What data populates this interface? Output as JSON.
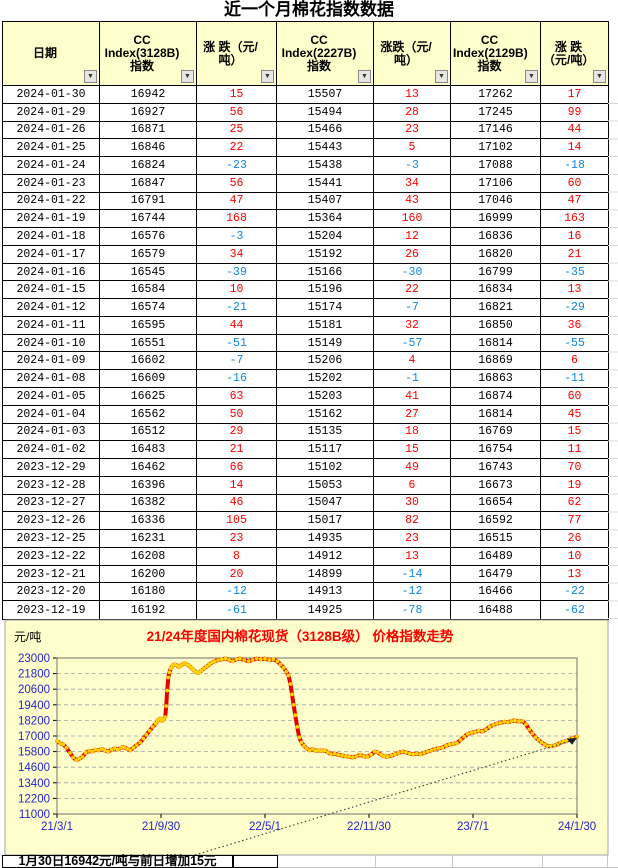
{
  "page_title": "近一个月棉花指数数据",
  "colors": {
    "positive": "#fe0000",
    "negative": "#0d86e8",
    "header_bg": "#ffffcc",
    "chart_bg": "#ffffcc",
    "axis_label": "#2525cc",
    "grid_line": "#9aa0a8",
    "series_line": "#e60000",
    "series_marker": "#ffd400",
    "chart_title": "#fe0000"
  },
  "table": {
    "filter_icon": "▼",
    "headers": [
      "日期",
      "CC\nIndex(3128B)\n指数",
      "涨 跌（元/吨）",
      "CC\nIndex(2227B)\n指数",
      "涨跌（元/吨）",
      "CC\nIndex(2129B)\n指数",
      "涨 跌（元/吨）"
    ],
    "change_columns": [
      2,
      4,
      6
    ],
    "rows": [
      [
        "2024-01-30",
        16942,
        15,
        15507,
        13,
        17262,
        17
      ],
      [
        "2024-01-29",
        16927,
        56,
        15494,
        28,
        17245,
        99
      ],
      [
        "2024-01-26",
        16871,
        25,
        15466,
        23,
        17146,
        44
      ],
      [
        "2024-01-25",
        16846,
        22,
        15443,
        5,
        17102,
        14
      ],
      [
        "2024-01-24",
        16824,
        -23,
        15438,
        -3,
        17088,
        -18
      ],
      [
        "2024-01-23",
        16847,
        56,
        15441,
        34,
        17106,
        60
      ],
      [
        "2024-01-22",
        16791,
        47,
        15407,
        43,
        17046,
        47
      ],
      [
        "2024-01-19",
        16744,
        168,
        15364,
        160,
        16999,
        163
      ],
      [
        "2024-01-18",
        16576,
        -3,
        15204,
        12,
        16836,
        16
      ],
      [
        "2024-01-17",
        16579,
        34,
        15192,
        26,
        16820,
        21
      ],
      [
        "2024-01-16",
        16545,
        -39,
        15166,
        -30,
        16799,
        -35
      ],
      [
        "2024-01-15",
        16584,
        10,
        15196,
        22,
        16834,
        13
      ],
      [
        "2024-01-12",
        16574,
        -21,
        15174,
        -7,
        16821,
        -29
      ],
      [
        "2024-01-11",
        16595,
        44,
        15181,
        32,
        16850,
        36
      ],
      [
        "2024-01-10",
        16551,
        -51,
        15149,
        -57,
        16814,
        -55
      ],
      [
        "2024-01-09",
        16602,
        -7,
        15206,
        4,
        16869,
        6
      ],
      [
        "2024-01-08",
        16609,
        -16,
        15202,
        -1,
        16863,
        -11
      ],
      [
        "2024-01-05",
        16625,
        63,
        15203,
        41,
        16874,
        60
      ],
      [
        "2024-01-04",
        16562,
        50,
        15162,
        27,
        16814,
        45
      ],
      [
        "2024-01-03",
        16512,
        29,
        15135,
        18,
        16769,
        15
      ],
      [
        "2024-01-02",
        16483,
        21,
        15117,
        15,
        16754,
        11
      ],
      [
        "2023-12-29",
        16462,
        66,
        15102,
        49,
        16743,
        70
      ],
      [
        "2023-12-28",
        16396,
        14,
        15053,
        6,
        16673,
        19
      ],
      [
        "2023-12-27",
        16382,
        46,
        15047,
        30,
        16654,
        62
      ],
      [
        "2023-12-26",
        16336,
        105,
        15017,
        82,
        16592,
        77
      ],
      [
        "2023-12-25",
        16231,
        23,
        14935,
        23,
        16515,
        26
      ],
      [
        "2023-12-22",
        16208,
        8,
        14912,
        13,
        16489,
        10
      ],
      [
        "2023-12-21",
        16200,
        20,
        14899,
        -14,
        16479,
        13
      ],
      [
        "2023-12-20",
        16180,
        -12,
        14913,
        -12,
        16466,
        -22
      ],
      [
        "2023-12-19",
        16192,
        -61,
        14925,
        -78,
        16488,
        -62
      ]
    ]
  },
  "chart_data": {
    "type": "line",
    "title": "21/24年度国内棉花现货（3128B级） 价格指数走势",
    "ylabel": "元/吨",
    "ylim": [
      11000,
      23000
    ],
    "yticks": [
      23000,
      21800,
      20600,
      19400,
      18200,
      17000,
      15800,
      14600,
      13400,
      12200,
      11000
    ],
    "xticklabels": [
      "21/3/1",
      "21/9/30",
      "22/5/1",
      "22/11/30",
      "23/7/1",
      "24/1/30"
    ],
    "grid": "dashed",
    "annotation": "1月30日16942元/吨与前日增加15元",
    "series": [
      {
        "name": "CC Index(3128B)",
        "points": [
          [
            0.0,
            16600
          ],
          [
            0.006,
            16450
          ],
          [
            0.012,
            16350
          ],
          [
            0.018,
            16100
          ],
          [
            0.025,
            15700
          ],
          [
            0.031,
            15350
          ],
          [
            0.037,
            15150
          ],
          [
            0.043,
            15250
          ],
          [
            0.049,
            15400
          ],
          [
            0.055,
            15700
          ],
          [
            0.062,
            15850
          ],
          [
            0.068,
            15800
          ],
          [
            0.074,
            15950
          ],
          [
            0.08,
            15900
          ],
          [
            0.086,
            16000
          ],
          [
            0.092,
            15900
          ],
          [
            0.098,
            15800
          ],
          [
            0.105,
            15950
          ],
          [
            0.111,
            16050
          ],
          [
            0.117,
            15950
          ],
          [
            0.123,
            16100
          ],
          [
            0.129,
            16150
          ],
          [
            0.135,
            16000
          ],
          [
            0.141,
            15900
          ],
          [
            0.147,
            16100
          ],
          [
            0.153,
            16300
          ],
          [
            0.16,
            16500
          ],
          [
            0.166,
            16800
          ],
          [
            0.172,
            17100
          ],
          [
            0.178,
            17400
          ],
          [
            0.184,
            17700
          ],
          [
            0.19,
            17950
          ],
          [
            0.193,
            18150
          ],
          [
            0.196,
            18300
          ],
          [
            0.199,
            18350
          ],
          [
            0.202,
            18150
          ],
          [
            0.205,
            18300
          ],
          [
            0.208,
            18450
          ],
          [
            0.21,
            19300
          ],
          [
            0.212,
            20500
          ],
          [
            0.214,
            21500
          ],
          [
            0.216,
            21900
          ],
          [
            0.219,
            22200
          ],
          [
            0.222,
            22400
          ],
          [
            0.226,
            22500
          ],
          [
            0.23,
            22450
          ],
          [
            0.234,
            22300
          ],
          [
            0.238,
            22400
          ],
          [
            0.242,
            22550
          ],
          [
            0.246,
            22600
          ],
          [
            0.25,
            22500
          ],
          [
            0.254,
            22400
          ],
          [
            0.258,
            22250
          ],
          [
            0.262,
            22100
          ],
          [
            0.266,
            21950
          ],
          [
            0.27,
            21850
          ],
          [
            0.274,
            21900
          ],
          [
            0.278,
            22050
          ],
          [
            0.283,
            22200
          ],
          [
            0.288,
            22350
          ],
          [
            0.293,
            22500
          ],
          [
            0.298,
            22650
          ],
          [
            0.303,
            22750
          ],
          [
            0.31,
            22850
          ],
          [
            0.317,
            22900
          ],
          [
            0.324,
            22950
          ],
          [
            0.331,
            22850
          ],
          [
            0.338,
            22750
          ],
          [
            0.345,
            22900
          ],
          [
            0.352,
            22950
          ],
          [
            0.36,
            22850
          ],
          [
            0.368,
            22750
          ],
          [
            0.376,
            22850
          ],
          [
            0.384,
            22950
          ],
          [
            0.392,
            22900
          ],
          [
            0.4,
            22950
          ],
          [
            0.408,
            22850
          ],
          [
            0.416,
            22900
          ],
          [
            0.424,
            22750
          ],
          [
            0.43,
            22500
          ],
          [
            0.436,
            22250
          ],
          [
            0.441,
            21950
          ],
          [
            0.445,
            21650
          ],
          [
            0.449,
            21000
          ],
          [
            0.452,
            20200
          ],
          [
            0.455,
            19400
          ],
          [
            0.458,
            18600
          ],
          [
            0.462,
            17700
          ],
          [
            0.466,
            16900
          ],
          [
            0.47,
            16500
          ],
          [
            0.475,
            16250
          ],
          [
            0.48,
            16050
          ],
          [
            0.486,
            15900
          ],
          [
            0.492,
            16000
          ],
          [
            0.497,
            15850
          ],
          [
            0.503,
            15900
          ],
          [
            0.509,
            15850
          ],
          [
            0.515,
            15900
          ],
          [
            0.521,
            15750
          ],
          [
            0.527,
            15600
          ],
          [
            0.534,
            15650
          ],
          [
            0.541,
            15550
          ],
          [
            0.548,
            15500
          ],
          [
            0.555,
            15450
          ],
          [
            0.562,
            15400
          ],
          [
            0.569,
            15350
          ],
          [
            0.576,
            15450
          ],
          [
            0.583,
            15550
          ],
          [
            0.59,
            15450
          ],
          [
            0.597,
            15400
          ],
          [
            0.604,
            15550
          ],
          [
            0.611,
            15800
          ],
          [
            0.617,
            15750
          ],
          [
            0.623,
            15550
          ],
          [
            0.629,
            15450
          ],
          [
            0.636,
            15400
          ],
          [
            0.643,
            15500
          ],
          [
            0.65,
            15600
          ],
          [
            0.657,
            15700
          ],
          [
            0.664,
            15800
          ],
          [
            0.671,
            15750
          ],
          [
            0.678,
            15650
          ],
          [
            0.685,
            15600
          ],
          [
            0.692,
            15650
          ],
          [
            0.699,
            15600
          ],
          [
            0.706,
            15700
          ],
          [
            0.713,
            15800
          ],
          [
            0.72,
            15900
          ],
          [
            0.727,
            16000
          ],
          [
            0.734,
            16050
          ],
          [
            0.741,
            16100
          ],
          [
            0.748,
            16250
          ],
          [
            0.755,
            16350
          ],
          [
            0.762,
            16400
          ],
          [
            0.769,
            16450
          ],
          [
            0.776,
            16700
          ],
          [
            0.783,
            16950
          ],
          [
            0.79,
            17150
          ],
          [
            0.797,
            17250
          ],
          [
            0.804,
            17300
          ],
          [
            0.811,
            17400
          ],
          [
            0.818,
            17350
          ],
          [
            0.825,
            17500
          ],
          [
            0.832,
            17700
          ],
          [
            0.839,
            17850
          ],
          [
            0.846,
            17950
          ],
          [
            0.853,
            18000
          ],
          [
            0.86,
            18100
          ],
          [
            0.867,
            18050
          ],
          [
            0.874,
            18150
          ],
          [
            0.881,
            18200
          ],
          [
            0.888,
            18100
          ],
          [
            0.895,
            18150
          ],
          [
            0.902,
            17900
          ],
          [
            0.908,
            17500
          ],
          [
            0.914,
            17200
          ],
          [
            0.92,
            16900
          ],
          [
            0.926,
            16700
          ],
          [
            0.932,
            16500
          ],
          [
            0.938,
            16350
          ],
          [
            0.944,
            16200
          ],
          [
            0.95,
            16230
          ],
          [
            0.956,
            16250
          ],
          [
            0.962,
            16340
          ],
          [
            0.968,
            16480
          ],
          [
            0.974,
            16560
          ],
          [
            0.98,
            16620
          ],
          [
            0.986,
            16740
          ],
          [
            0.992,
            16850
          ],
          [
            1.0,
            16942
          ]
        ]
      }
    ]
  }
}
